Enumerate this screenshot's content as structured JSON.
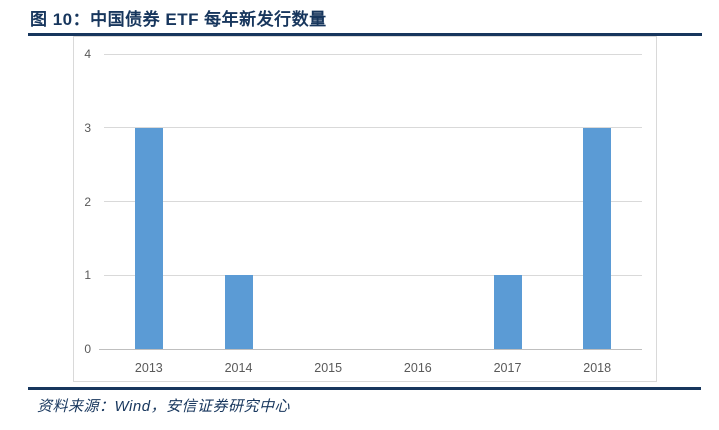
{
  "header": {
    "title": "图 10：中国债券 ETF 每年新发行数量"
  },
  "footer": {
    "source": "资料来源：Wind，安信证券研究中心"
  },
  "colors": {
    "accent_navy": "#17365D",
    "bar_blue": "#5B9BD5",
    "gridline_gray": "#D9D9D9",
    "axis_gray": "#BFBFBF",
    "tick_text_gray": "#595959"
  },
  "chart_data": {
    "type": "bar",
    "title": "中国债券 ETF 每年新发行数量",
    "categories": [
      "2013",
      "2014",
      "2015",
      "2016",
      "2017",
      "2018"
    ],
    "values": [
      3,
      1,
      0,
      0,
      1,
      3
    ],
    "xlabel": "",
    "ylabel": "",
    "ylim": [
      0,
      4
    ],
    "yticks": [
      0,
      1,
      2,
      3,
      4
    ],
    "grid": true,
    "legend": false,
    "bar_color": "#5B9BD5"
  }
}
